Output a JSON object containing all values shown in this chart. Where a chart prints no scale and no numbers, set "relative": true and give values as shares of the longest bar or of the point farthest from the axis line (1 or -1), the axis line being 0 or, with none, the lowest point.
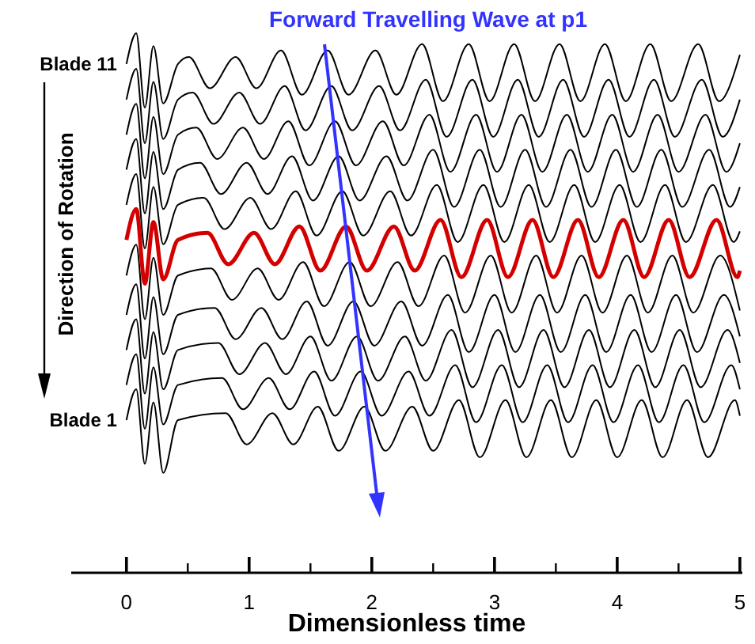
{
  "chart_data": {
    "type": "line",
    "relative": true,
    "xlabel": "Dimensionless time",
    "annotations": [
      "Forward Travelling Wave at p1",
      "Direction of Rotation"
    ],
    "xlim": [
      -0.45,
      5.02
    ],
    "xticks": [
      0,
      {
        "value": 0.5,
        "label": null
      },
      1,
      {
        "value": 1.5,
        "label": null
      },
      2,
      {
        "value": 2.5,
        "label": null
      },
      3,
      {
        "value": 3.5,
        "label": null
      },
      4,
      {
        "value": 4.5,
        "label": null
      },
      5
    ],
    "series": [
      {
        "name": "Blade 1",
        "color": "#000000",
        "x": [
          0,
          0.08,
          0.15,
          0.22,
          0.3,
          0.42,
          0.81,
          0.98,
          1.19,
          1.36,
          1.56,
          1.73,
          1.94,
          2.11,
          2.33,
          2.5,
          2.71,
          2.88,
          3.09,
          3.26,
          3.46,
          3.63,
          3.83,
          4.0,
          4.2,
          4.37,
          4.57,
          4.74,
          4.96,
          5.0
        ],
        "values": [
          0.283,
          0.34,
          0.202,
          0.316,
          0.185,
          0.283,
          0.296,
          0.238,
          0.296,
          0.238,
          0.308,
          0.226,
          0.308,
          0.226,
          0.308,
          0.226,
          0.32,
          0.214,
          0.32,
          0.214,
          0.32,
          0.214,
          0.32,
          0.214,
          0.32,
          0.214,
          0.32,
          0.214,
          0.32,
          0.291
        ]
      },
      {
        "color": "#000000",
        "x": [
          0,
          0.08,
          0.15,
          0.22,
          0.3,
          0.42,
          0.78,
          0.95,
          1.16,
          1.33,
          1.53,
          1.7,
          1.91,
          2.08,
          2.3,
          2.47,
          2.68,
          2.85,
          3.06,
          3.23,
          3.43,
          3.6,
          3.8,
          3.97,
          4.17,
          4.34,
          4.54,
          4.71,
          4.93,
          5.0
        ],
        "values": [
          0.348,
          0.405,
          0.267,
          0.381,
          0.275,
          0.348,
          0.361,
          0.303,
          0.361,
          0.303,
          0.373,
          0.291,
          0.373,
          0.291,
          0.373,
          0.291,
          0.385,
          0.279,
          0.385,
          0.279,
          0.385,
          0.279,
          0.385,
          0.279,
          0.385,
          0.279,
          0.385,
          0.279,
          0.385,
          0.34
        ]
      },
      {
        "color": "#000000",
        "x": [
          0,
          0.08,
          0.15,
          0.22,
          0.3,
          0.42,
          0.75,
          0.92,
          1.13,
          1.3,
          1.5,
          1.67,
          1.88,
          2.05,
          2.27,
          2.44,
          2.65,
          2.82,
          3.03,
          3.2,
          3.4,
          3.57,
          3.77,
          3.94,
          4.14,
          4.31,
          4.51,
          4.68,
          4.9,
          5.0
        ],
        "values": [
          0.413,
          0.47,
          0.332,
          0.446,
          0.34,
          0.413,
          0.426,
          0.368,
          0.426,
          0.368,
          0.438,
          0.356,
          0.438,
          0.356,
          0.438,
          0.356,
          0.45,
          0.344,
          0.45,
          0.344,
          0.45,
          0.344,
          0.45,
          0.344,
          0.45,
          0.344,
          0.45,
          0.344,
          0.45,
          0.389
        ]
      },
      {
        "color": "#000000",
        "x": [
          0,
          0.08,
          0.15,
          0.22,
          0.3,
          0.42,
          0.72,
          0.89,
          1.1,
          1.27,
          1.47,
          1.64,
          1.85,
          2.02,
          2.24,
          2.41,
          2.62,
          2.79,
          3.0,
          3.17,
          3.37,
          3.54,
          3.74,
          3.91,
          4.11,
          4.28,
          4.48,
          4.65,
          4.87,
          5.0
        ],
        "values": [
          0.478,
          0.535,
          0.397,
          0.511,
          0.405,
          0.478,
          0.491,
          0.433,
          0.491,
          0.433,
          0.503,
          0.421,
          0.503,
          0.421,
          0.503,
          0.421,
          0.515,
          0.409,
          0.515,
          0.409,
          0.515,
          0.409,
          0.515,
          0.409,
          0.515,
          0.409,
          0.515,
          0.409,
          0.515,
          0.438
        ]
      },
      {
        "color": "#000000",
        "x": [
          0,
          0.08,
          0.15,
          0.22,
          0.3,
          0.42,
          0.69,
          0.86,
          1.07,
          1.24,
          1.44,
          1.61,
          1.82,
          1.99,
          2.21,
          2.38,
          2.59,
          2.76,
          2.97,
          3.14,
          3.34,
          3.51,
          3.71,
          3.88,
          4.08,
          4.25,
          4.45,
          4.62,
          4.84,
          5.0
        ],
        "values": [
          0.551,
          0.608,
          0.47,
          0.584,
          0.478,
          0.551,
          0.564,
          0.506,
          0.564,
          0.506,
          0.576,
          0.494,
          0.576,
          0.494,
          0.576,
          0.494,
          0.588,
          0.482,
          0.588,
          0.482,
          0.588,
          0.482,
          0.588,
          0.482,
          0.588,
          0.482,
          0.588,
          0.482,
          0.588,
          0.486
        ]
      },
      {
        "color": "#d40000",
        "x": [
          0,
          0.08,
          0.15,
          0.22,
          0.3,
          0.42,
          0.66,
          0.83,
          1.04,
          1.21,
          1.41,
          1.58,
          1.79,
          1.96,
          2.18,
          2.35,
          2.56,
          2.73,
          2.94,
          3.11,
          3.31,
          3.48,
          3.68,
          3.85,
          4.05,
          4.22,
          4.42,
          4.59,
          4.81,
          4.98,
          5.0
        ],
        "values": [
          0.617,
          0.674,
          0.536,
          0.65,
          0.544,
          0.617,
          0.63,
          0.572,
          0.63,
          0.572,
          0.642,
          0.56,
          0.642,
          0.56,
          0.642,
          0.56,
          0.654,
          0.548,
          0.654,
          0.548,
          0.654,
          0.548,
          0.654,
          0.548,
          0.654,
          0.548,
          0.654,
          0.548,
          0.654,
          0.548,
          0.56
        ]
      },
      {
        "color": "#000000",
        "x": [
          0,
          0.08,
          0.15,
          0.22,
          0.3,
          0.42,
          0.63,
          0.8,
          1.01,
          1.18,
          1.38,
          1.55,
          1.76,
          1.93,
          2.15,
          2.32,
          2.53,
          2.7,
          2.91,
          3.08,
          3.28,
          3.45,
          3.65,
          3.82,
          4.02,
          4.19,
          4.39,
          4.56,
          4.78,
          4.95,
          5.0
        ],
        "values": [
          0.682,
          0.739,
          0.601,
          0.715,
          0.609,
          0.682,
          0.695,
          0.637,
          0.695,
          0.637,
          0.707,
          0.625,
          0.707,
          0.625,
          0.707,
          0.625,
          0.719,
          0.613,
          0.719,
          0.613,
          0.719,
          0.613,
          0.719,
          0.613,
          0.719,
          0.613,
          0.719,
          0.613,
          0.719,
          0.613,
          0.633
        ]
      },
      {
        "color": "#000000",
        "x": [
          0,
          0.08,
          0.15,
          0.22,
          0.3,
          0.42,
          0.6,
          0.77,
          0.98,
          1.15,
          1.35,
          1.52,
          1.73,
          1.9,
          2.12,
          2.29,
          2.5,
          2.67,
          2.88,
          3.05,
          3.25,
          3.42,
          3.62,
          3.79,
          3.99,
          4.16,
          4.36,
          4.53,
          4.75,
          4.92,
          5.0
        ],
        "values": [
          0.747,
          0.804,
          0.666,
          0.78,
          0.674,
          0.747,
          0.76,
          0.702,
          0.76,
          0.702,
          0.772,
          0.69,
          0.772,
          0.69,
          0.772,
          0.69,
          0.784,
          0.678,
          0.784,
          0.678,
          0.784,
          0.678,
          0.784,
          0.678,
          0.784,
          0.678,
          0.784,
          0.678,
          0.784,
          0.678,
          0.715
        ]
      },
      {
        "color": "#000000",
        "x": [
          0,
          0.08,
          0.15,
          0.22,
          0.3,
          0.42,
          0.57,
          0.74,
          0.95,
          1.12,
          1.32,
          1.49,
          1.7,
          1.87,
          2.09,
          2.26,
          2.47,
          2.64,
          2.85,
          3.02,
          3.22,
          3.39,
          3.59,
          3.76,
          3.96,
          4.13,
          4.33,
          4.5,
          4.72,
          4.89,
          5.0
        ],
        "values": [
          0.812,
          0.869,
          0.731,
          0.845,
          0.739,
          0.812,
          0.825,
          0.767,
          0.825,
          0.767,
          0.837,
          0.755,
          0.837,
          0.755,
          0.837,
          0.755,
          0.849,
          0.743,
          0.849,
          0.743,
          0.849,
          0.743,
          0.849,
          0.743,
          0.849,
          0.743,
          0.849,
          0.743,
          0.849,
          0.743,
          0.796
        ]
      },
      {
        "color": "#000000",
        "x": [
          0,
          0.08,
          0.15,
          0.22,
          0.3,
          0.42,
          0.54,
          0.71,
          0.92,
          1.09,
          1.29,
          1.46,
          1.67,
          1.84,
          2.06,
          2.23,
          2.44,
          2.61,
          2.82,
          2.99,
          3.19,
          3.36,
          3.56,
          3.73,
          3.93,
          4.1,
          4.3,
          4.47,
          4.69,
          4.86,
          5.0
        ],
        "values": [
          0.877,
          0.934,
          0.796,
          0.91,
          0.804,
          0.877,
          0.89,
          0.832,
          0.89,
          0.832,
          0.902,
          0.82,
          0.902,
          0.82,
          0.902,
          0.82,
          0.914,
          0.808,
          0.914,
          0.808,
          0.914,
          0.808,
          0.914,
          0.808,
          0.914,
          0.808,
          0.914,
          0.808,
          0.914,
          0.808,
          0.877
        ]
      },
      {
        "name": "Blade 11",
        "color": "#000000",
        "x": [
          0,
          0.08,
          0.15,
          0.22,
          0.3,
          0.42,
          0.51,
          0.68,
          0.89,
          1.06,
          1.26,
          1.43,
          1.64,
          1.81,
          2.03,
          2.2,
          2.41,
          2.58,
          2.79,
          2.96,
          3.16,
          3.33,
          3.53,
          3.7,
          3.9,
          4.07,
          4.27,
          4.44,
          4.66,
          4.83,
          5.0
        ],
        "values": [
          0.943,
          1.0,
          0.862,
          0.976,
          0.87,
          0.943,
          0.956,
          0.898,
          0.956,
          0.898,
          0.968,
          0.886,
          0.968,
          0.886,
          0.968,
          0.886,
          0.98,
          0.874,
          0.98,
          0.874,
          0.98,
          0.874,
          0.98,
          0.874,
          0.98,
          0.874,
          0.98,
          0.874,
          0.98,
          0.874,
          0.96
        ]
      }
    ]
  }
}
